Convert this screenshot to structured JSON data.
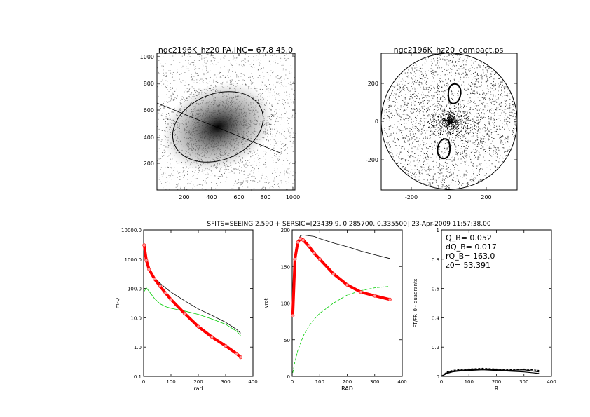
{
  "panels": {
    "image": {
      "title": "ngc2196K_hz20 PA,INC= 67.8 45.0",
      "x_ticks": [
        "200",
        "400",
        "600",
        "800",
        "1000"
      ],
      "y_ticks": [
        "200",
        "400",
        "600",
        "800",
        "1000"
      ],
      "pa_deg": 67.8,
      "inc_deg": 45.0
    },
    "compact": {
      "title": "ngc2196K_hz20_compact.ps",
      "x_ticks": [
        "-200",
        "0",
        "200"
      ],
      "y_ticks": [
        "-200",
        "0",
        "200"
      ]
    }
  },
  "header": "SFITS=SEEING 2.590 + SERSIC=[23439.9, 0.285700, 0.335500]  23-Apr-2009 11:57:38.00",
  "params": {
    "q": " Q_B=  0.052",
    "dq": "dQ_B=  0.017",
    "rq": "rQ_B=  163.0",
    "z0": " z0= 53.391"
  },
  "colors": {
    "total": "#000000",
    "disk": "#00cc00",
    "bulge": "#ff0000",
    "frame": "#000000"
  },
  "chart_data": [
    {
      "type": "line",
      "id": "mass",
      "xlabel": "rad",
      "ylabel": "m-Q",
      "xlim": [
        0,
        400
      ],
      "ylim": [
        0.1,
        10000
      ],
      "yscale": "log",
      "x_ticks": [
        0,
        100,
        200,
        300,
        400
      ],
      "y_ticks": [
        0.1,
        1.0,
        10.0,
        100.0,
        1000.0,
        10000.0
      ],
      "y_tick_labels": [
        "0.1",
        "1.0",
        "10.0",
        "100.0",
        "1000.0",
        "10000.0"
      ],
      "series": [
        {
          "x": [
            2,
            10,
            20,
            40,
            60,
            80,
            100,
            150,
            200,
            250,
            300,
            340,
            355
          ],
          "y": [
            3000,
            900,
            450,
            230,
            150,
            105,
            75,
            38,
            20,
            12,
            7,
            4,
            3
          ]
        },
        {
          "x": [
            2,
            10,
            20,
            40,
            60,
            80,
            100,
            150,
            200,
            250,
            300,
            340,
            355
          ],
          "y": [
            80,
            105,
            80,
            45,
            30,
            24,
            21,
            17,
            13,
            9,
            6,
            3.5,
            2.5
          ]
        },
        {
          "x": [
            2,
            10,
            20,
            40,
            60,
            80,
            100,
            150,
            200,
            250,
            300,
            340,
            355
          ],
          "y": [
            3000,
            900,
            450,
            210,
            120,
            70,
            42,
            14,
            5,
            2.2,
            1.1,
            0.6,
            0.45
          ]
        }
      ]
    },
    {
      "type": "line",
      "id": "rotation",
      "xlabel": "RAD",
      "ylabel": "vrot",
      "xlim": [
        0,
        400
      ],
      "ylim": [
        0,
        200
      ],
      "x_ticks": [
        0,
        100,
        200,
        300,
        400
      ],
      "y_ticks": [
        0,
        50,
        100,
        150,
        200
      ],
      "series": [
        {
          "x": [
            2,
            10,
            20,
            30,
            40,
            60,
            80,
            100,
            150,
            200,
            250,
            300,
            355
          ],
          "y": [
            85,
            165,
            185,
            192,
            193,
            192,
            191,
            188,
            182,
            177,
            171,
            166,
            161
          ]
        },
        {
          "x": [
            2,
            10,
            20,
            40,
            60,
            80,
            100,
            150,
            200,
            250,
            300,
            355
          ],
          "y": [
            5,
            20,
            35,
            55,
            68,
            78,
            86,
            100,
            111,
            117,
            121,
            123
          ]
        },
        {
          "x": [
            2,
            10,
            20,
            30,
            40,
            60,
            80,
            100,
            150,
            200,
            250,
            300,
            355
          ],
          "y": [
            83,
            160,
            183,
            188,
            186,
            178,
            168,
            160,
            140,
            125,
            115,
            110,
            105
          ]
        }
      ]
    },
    {
      "type": "line",
      "id": "quadrants",
      "xlabel": "R",
      "ylabel": "FT/FR_0 - quadrants",
      "xlim": [
        0,
        400
      ],
      "ylim": [
        0,
        1
      ],
      "x_ticks": [
        0,
        100,
        200,
        300,
        400
      ],
      "y_ticks": [
        0.0,
        0.2,
        0.4,
        0.6,
        0.8,
        1.0
      ],
      "series": [
        {
          "x": [
            0,
            20,
            40,
            60,
            100,
            150,
            200,
            250,
            300,
            355
          ],
          "y": [
            0,
            0.02,
            0.03,
            0.035,
            0.04,
            0.045,
            0.04,
            0.035,
            0.03,
            0.02
          ]
        },
        {
          "x": [
            0,
            20,
            40,
            60,
            100,
            150,
            200,
            250,
            300,
            355
          ],
          "y": [
            0,
            0.025,
            0.035,
            0.04,
            0.045,
            0.05,
            0.045,
            0.04,
            0.045,
            0.03
          ]
        },
        {
          "x": [
            0,
            20,
            40,
            60,
            100,
            150,
            200,
            250,
            300,
            355
          ],
          "y": [
            0,
            0.03,
            0.04,
            0.045,
            0.05,
            0.055,
            0.05,
            0.045,
            0.05,
            0.04
          ]
        }
      ]
    }
  ]
}
